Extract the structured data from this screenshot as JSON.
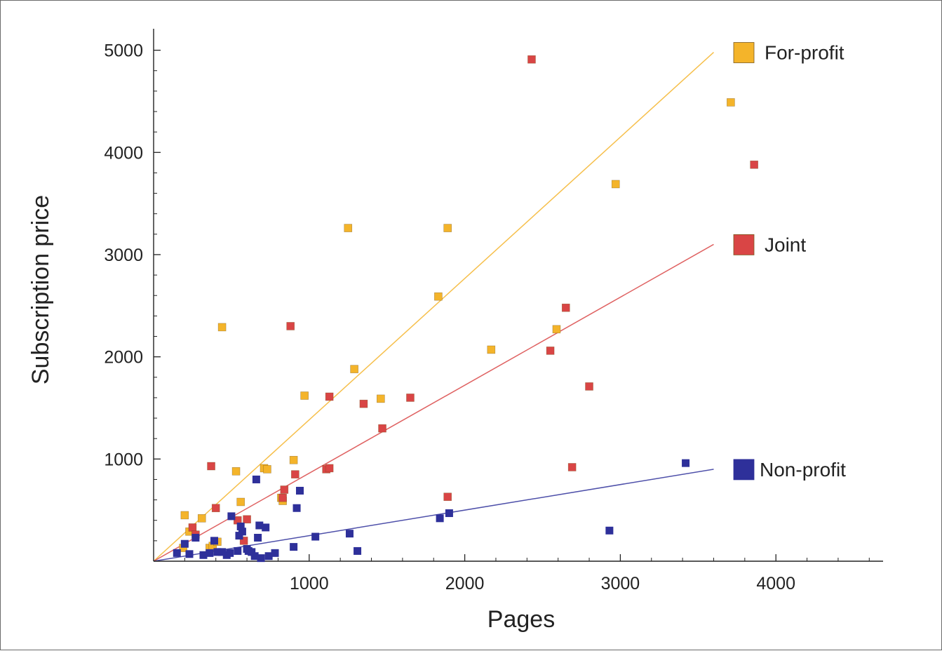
{
  "chart_data": {
    "type": "scatter",
    "title": "",
    "xlabel": "Pages",
    "ylabel": "Subscription price",
    "xlim": [
      0,
      4650
    ],
    "ylim": [
      0,
      5100
    ],
    "x_ticks": [
      1000,
      2000,
      3000,
      4000
    ],
    "x_tick_labels": [
      "1000",
      "2000",
      "3000",
      "4000"
    ],
    "y_ticks": [
      1000,
      2000,
      3000,
      4000,
      5000
    ],
    "y_tick_labels": [
      "1000",
      "2000",
      "3000",
      "4000",
      "5000"
    ],
    "grid": false,
    "legend": "right, next to each fitted line",
    "series": [
      {
        "name": "For-profit",
        "color": "#f4b42a",
        "fit_line": [
          [
            0,
            0
          ],
          [
            3600,
            4980
          ]
        ],
        "points": [
          [
            190,
            130
          ],
          [
            200,
            450
          ],
          [
            230,
            290
          ],
          [
            310,
            420
          ],
          [
            360,
            130
          ],
          [
            380,
            150
          ],
          [
            410,
            190
          ],
          [
            440,
            2290
          ],
          [
            530,
            880
          ],
          [
            560,
            580
          ],
          [
            710,
            910
          ],
          [
            730,
            900
          ],
          [
            820,
            620
          ],
          [
            830,
            590
          ],
          [
            900,
            990
          ],
          [
            970,
            1620
          ],
          [
            1250,
            3260
          ],
          [
            1290,
            1880
          ],
          [
            1460,
            1590
          ],
          [
            1830,
            2590
          ],
          [
            1890,
            3260
          ],
          [
            2170,
            2070
          ],
          [
            2590,
            2270
          ],
          [
            2970,
            3690
          ],
          [
            3710,
            4490
          ]
        ]
      },
      {
        "name": "Joint",
        "color": "#d94545",
        "fit_line": [
          [
            0,
            0
          ],
          [
            3600,
            3100
          ]
        ],
        "points": [
          [
            250,
            330
          ],
          [
            270,
            260
          ],
          [
            370,
            930
          ],
          [
            400,
            520
          ],
          [
            540,
            400
          ],
          [
            580,
            200
          ],
          [
            600,
            410
          ],
          [
            830,
            620
          ],
          [
            840,
            700
          ],
          [
            880,
            2300
          ],
          [
            910,
            850
          ],
          [
            1110,
            900
          ],
          [
            1130,
            910
          ],
          [
            1130,
            1610
          ],
          [
            1350,
            1540
          ],
          [
            1470,
            1300
          ],
          [
            1650,
            1600
          ],
          [
            1890,
            630
          ],
          [
            2430,
            4910
          ],
          [
            2550,
            2060
          ],
          [
            2650,
            2480
          ],
          [
            2690,
            920
          ],
          [
            2800,
            1710
          ],
          [
            3860,
            3880
          ]
        ]
      },
      {
        "name": "Non-profit",
        "color": "#2e309a",
        "fit_line": [
          [
            0,
            0
          ],
          [
            3600,
            900
          ]
        ],
        "points": [
          [
            150,
            80
          ],
          [
            200,
            170
          ],
          [
            230,
            70
          ],
          [
            270,
            230
          ],
          [
            320,
            60
          ],
          [
            360,
            80
          ],
          [
            390,
            200
          ],
          [
            410,
            90
          ],
          [
            440,
            90
          ],
          [
            470,
            60
          ],
          [
            490,
            80
          ],
          [
            500,
            440
          ],
          [
            540,
            100
          ],
          [
            550,
            250
          ],
          [
            560,
            340
          ],
          [
            570,
            290
          ],
          [
            600,
            120
          ],
          [
            610,
            100
          ],
          [
            630,
            90
          ],
          [
            650,
            50
          ],
          [
            660,
            800
          ],
          [
            670,
            230
          ],
          [
            680,
            350
          ],
          [
            690,
            30
          ],
          [
            720,
            330
          ],
          [
            740,
            50
          ],
          [
            780,
            80
          ],
          [
            900,
            140
          ],
          [
            920,
            520
          ],
          [
            940,
            690
          ],
          [
            1040,
            240
          ],
          [
            1260,
            270
          ],
          [
            1310,
            100
          ],
          [
            1840,
            420
          ],
          [
            1900,
            470
          ],
          [
            2930,
            300
          ],
          [
            3420,
            960
          ]
        ]
      }
    ]
  }
}
